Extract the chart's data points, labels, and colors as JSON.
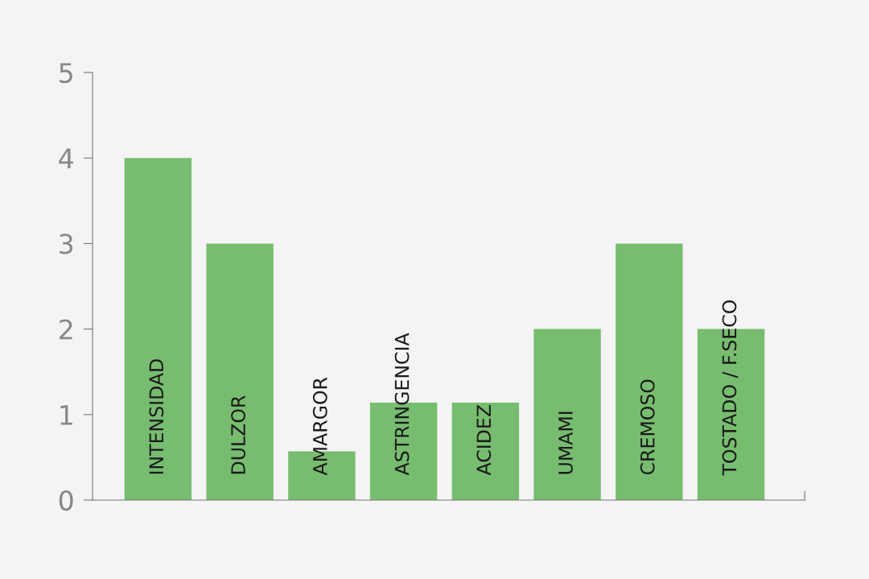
{
  "chart_data": {
    "type": "bar",
    "categories": [
      "INTENSIDAD",
      "DULZOR",
      "AMARGOR",
      "ASTRINGENCIA",
      "ACIDEZ",
      "UMAMI",
      "CREMOSO",
      "TOSTADO / F.SECO"
    ],
    "values": [
      4,
      3,
      0.57,
      1.14,
      1.14,
      2,
      3,
      2
    ],
    "color": "#77bd6f",
    "ylim": [
      0,
      5
    ],
    "yticks": [
      0,
      1,
      2,
      3,
      4,
      5
    ],
    "grid": false,
    "legend": false
  }
}
